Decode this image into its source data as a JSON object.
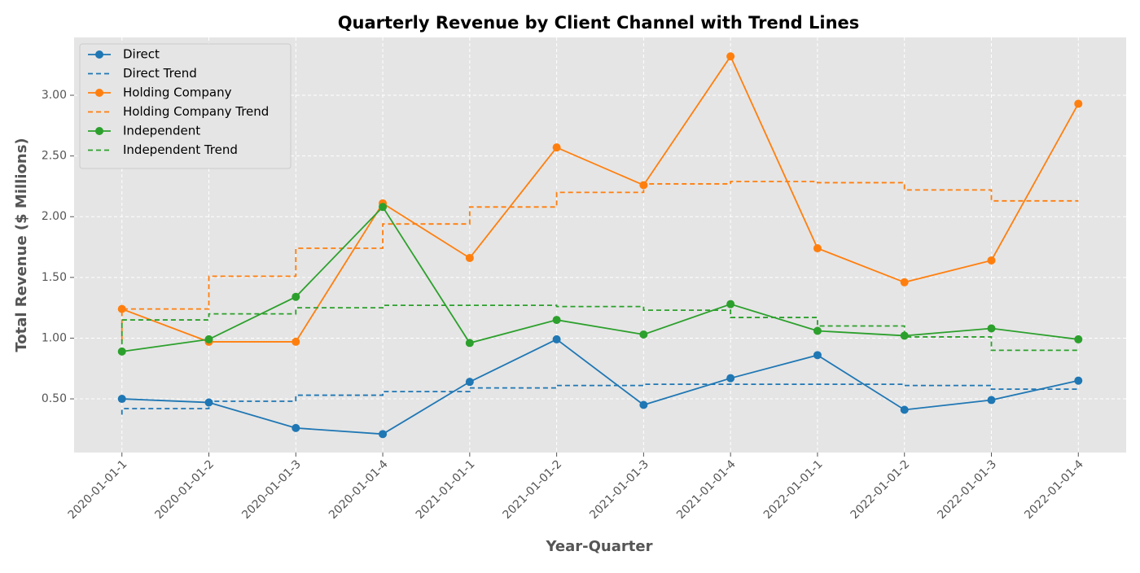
{
  "chart_data": {
    "type": "line",
    "title": "Quarterly Revenue by Client Channel with Trend Lines",
    "x_label": "Year-Quarter",
    "y_label": "Total Revenue ($ Millions)",
    "categories": [
      "2020-01-01-1",
      "2020-01-01-2",
      "2020-01-01-3",
      "2020-01-01-4",
      "2021-01-01-1",
      "2021-01-01-2",
      "2021-01-01-3",
      "2021-01-01-4",
      "2022-01-01-1",
      "2022-01-01-2",
      "2022-01-01-3",
      "2022-01-01-4"
    ],
    "ylim": [
      0.058,
      3.476
    ],
    "yticks": [
      {
        "value": 0.5,
        "label": "0.50"
      },
      {
        "value": 1,
        "label": "1.00"
      },
      {
        "value": 1.5,
        "label": "1.50"
      },
      {
        "value": 2,
        "label": "2.00"
      },
      {
        "value": 2.5,
        "label": "2.50"
      },
      {
        "value": 3,
        "label": "3.00"
      }
    ],
    "grid": true,
    "legend": "upper-left",
    "series": [
      {
        "name": "Direct",
        "color": "#1f77b4",
        "linestyle": "solid",
        "marker": "o",
        "values": [
          0.5,
          0.47,
          0.26,
          0.21,
          0.64,
          0.99,
          0.45,
          0.67,
          0.86,
          0.41,
          0.49,
          0.65
        ]
      },
      {
        "name": "Direct Trend",
        "color": "#1f77b4",
        "linestyle": "dashed",
        "drawstyle": "steps-pre",
        "values": [
          0.37,
          0.42,
          0.48,
          0.53,
          0.56,
          0.59,
          0.61,
          0.62,
          0.62,
          0.62,
          0.61,
          0.58
        ]
      },
      {
        "name": "Holding Company",
        "color": "#ff7f0e",
        "linestyle": "solid",
        "marker": "o",
        "values": [
          1.24,
          0.97,
          0.97,
          2.11,
          1.66,
          2.57,
          2.26,
          3.32,
          1.74,
          1.46,
          1.64,
          2.93
        ]
      },
      {
        "name": "Holding Company Trend",
        "color": "#ff7f0e",
        "linestyle": "dashed",
        "drawstyle": "steps-pre",
        "values": [
          0.98,
          1.24,
          1.51,
          1.74,
          1.94,
          2.08,
          2.2,
          2.27,
          2.29,
          2.28,
          2.22,
          2.13
        ]
      },
      {
        "name": "Independent",
        "color": "#2ca02c",
        "linestyle": "solid",
        "marker": "o",
        "values": [
          0.89,
          0.99,
          1.34,
          2.08,
          0.96,
          1.15,
          1.03,
          1.28,
          1.06,
          1.02,
          1.08,
          0.99
        ]
      },
      {
        "name": "Independent Trend",
        "color": "#2ca02c",
        "linestyle": "dashed",
        "drawstyle": "steps-pre",
        "values": [
          0.95,
          1.15,
          1.2,
          1.25,
          1.27,
          1.27,
          1.26,
          1.23,
          1.17,
          1.1,
          1.01,
          0.9
        ]
      }
    ]
  }
}
